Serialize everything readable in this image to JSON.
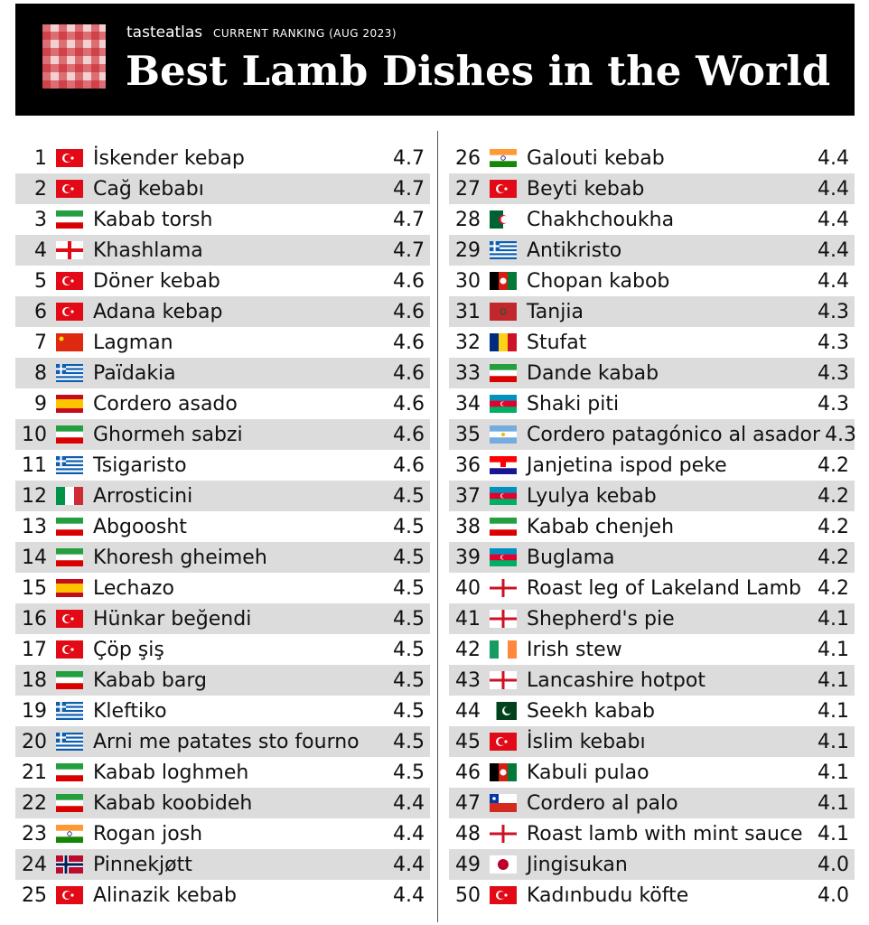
{
  "header": {
    "brand": "tasteatlas",
    "subtitle": "CURRENT RANKING (AUG 2023)",
    "title": "Best Lamb Dishes in the World"
  },
  "table": {
    "rows": [
      [
        1,
        "İskender kebap",
        "4.7"
      ],
      [
        2,
        "Cağ kebabı",
        "4.7"
      ],
      [
        3,
        "Kabab torsh",
        "4.7"
      ],
      [
        4,
        "Khashlama",
        "4.7"
      ],
      [
        5,
        "Döner kebab",
        "4.6"
      ],
      [
        6,
        "Adana kebap",
        "4.6"
      ],
      [
        7,
        "Lagman",
        "4.6"
      ],
      [
        8,
        "Païdakia",
        "4.6"
      ],
      [
        9,
        "Cordero asado",
        "4.6"
      ],
      [
        10,
        "Ghormeh sabzi",
        "4.6"
      ],
      [
        11,
        "Tsigaristo",
        "4.6"
      ],
      [
        12,
        "Arrosticini",
        "4.5"
      ],
      [
        13,
        "Abgoosht",
        "4.5"
      ],
      [
        14,
        "Khoresh gheimeh",
        "4.5"
      ],
      [
        15,
        "Lechazo",
        "4.5"
      ],
      [
        16,
        "Hünkar beğendi",
        "4.5"
      ],
      [
        17,
        "Çöp şiş",
        "4.5"
      ],
      [
        18,
        "Kabab barg",
        "4.5"
      ],
      [
        19,
        "Kleftiko",
        "4.5"
      ],
      [
        20,
        "Arni me patates sto fourno",
        "4.5"
      ],
      [
        21,
        "Kabab loghmeh",
        "4.5"
      ],
      [
        22,
        "Kabab koobideh",
        "4.4"
      ],
      [
        23,
        "Rogan josh",
        "4.4"
      ],
      [
        24,
        "Pinnekjøtt",
        "4.4"
      ],
      [
        25,
        "Alinazik kebab",
        "4.4"
      ],
      [
        26,
        "Galouti kebab",
        "4.4"
      ],
      [
        27,
        "Beyti kebab",
        "4.4"
      ],
      [
        28,
        "Chakhchoukha",
        "4.4"
      ],
      [
        29,
        "Antikristo",
        "4.4"
      ],
      [
        30,
        "Chopan kabob",
        "4.4"
      ],
      [
        31,
        "Tanjia",
        "4.3"
      ],
      [
        32,
        "Stufat",
        "4.3"
      ],
      [
        33,
        "Dande kabab",
        "4.3"
      ],
      [
        34,
        "Shaki piti",
        "4.3"
      ],
      [
        35,
        "Cordero patagónico al asador",
        "4.3"
      ],
      [
        36,
        "Janjetina ispod peke",
        "4.2"
      ],
      [
        37,
        "Lyulya kebab",
        "4.2"
      ],
      [
        38,
        "Kabab chenjeh",
        "4.2"
      ],
      [
        39,
        "Buglama",
        "4.2"
      ],
      [
        40,
        "Roast leg of Lakeland Lamb",
        "4.2"
      ],
      [
        41,
        "Shepherd's pie",
        "4.1"
      ],
      [
        42,
        "Irish stew",
        "4.1"
      ],
      [
        43,
        "Lancashire hotpot",
        "4.1"
      ],
      [
        44,
        "Seekh kabab",
        "4.1"
      ],
      [
        45,
        "İslim kebabı",
        "4.1"
      ],
      [
        46,
        "Kabuli pulao",
        "4.1"
      ],
      [
        47,
        "Cordero al palo",
        "4.1"
      ],
      [
        48,
        "Roast lamb with mint sauce",
        "4.1"
      ],
      [
        49,
        "Jingisukan",
        "4.0"
      ],
      [
        50,
        "Kadınbudu köfte",
        "4.0"
      ]
    ]
  }
}
